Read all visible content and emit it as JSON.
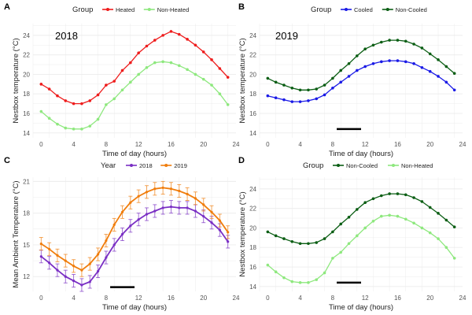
{
  "colors": {
    "heated": "#ee1c1c",
    "nonheated": "#8ee87e",
    "cooled": "#1a1ae6",
    "noncooled": "#0b5e14",
    "y2018": "#7a2fc4",
    "y2019": "#f07d0c",
    "grid": "#ececec",
    "text": "#222222",
    "tick": "#555555"
  },
  "chart_data": [
    {
      "id": "A",
      "panel_label": "A",
      "type": "line",
      "title": "",
      "annotation": "2018",
      "xlabel": "Time of day (hours)",
      "ylabel": "Nestbox temperature (°C)",
      "xlim": [
        -1,
        24
      ],
      "ylim": [
        13.5,
        25.2
      ],
      "xticks": [
        0,
        4,
        8,
        12,
        16,
        20,
        24
      ],
      "yticks": [
        14,
        16,
        18,
        20,
        22,
        24
      ],
      "legend": {
        "title": "Group",
        "position": "top"
      },
      "x": [
        0,
        1,
        2,
        3,
        4,
        5,
        6,
        7,
        8,
        9,
        10,
        11,
        12,
        13,
        14,
        15,
        16,
        17,
        18,
        19,
        20,
        21,
        22,
        23
      ],
      "series": [
        {
          "name": "Heated",
          "color_key": "heated",
          "values": [
            19.0,
            18.5,
            17.8,
            17.3,
            17.0,
            17.0,
            17.3,
            17.9,
            18.9,
            19.3,
            20.4,
            21.2,
            22.2,
            22.9,
            23.5,
            24.0,
            24.4,
            24.1,
            23.6,
            23.0,
            22.3,
            21.5,
            20.6,
            19.7
          ]
        },
        {
          "name": "Non-Heated",
          "color_key": "nonheated",
          "values": [
            16.2,
            15.5,
            14.9,
            14.5,
            14.4,
            14.4,
            14.7,
            15.4,
            16.9,
            17.5,
            18.4,
            19.2,
            20.0,
            20.7,
            21.2,
            21.3,
            21.2,
            20.9,
            20.5,
            20.0,
            19.5,
            18.9,
            18.0,
            16.9
          ]
        }
      ]
    },
    {
      "id": "B",
      "panel_label": "B",
      "type": "line",
      "title": "",
      "annotation": "2019",
      "xlabel": "Time of day (hours)",
      "ylabel": "Nestbox temperature (°C)",
      "xlim": [
        -1,
        24
      ],
      "ylim": [
        13.5,
        25.2
      ],
      "xticks": [
        0,
        4,
        8,
        12,
        16,
        20,
        24
      ],
      "yticks": [
        14,
        16,
        18,
        20,
        22,
        24
      ],
      "legend": {
        "title": "Group",
        "position": "top"
      },
      "bar": {
        "x_start": 8.5,
        "x_end": 11.5,
        "y": 14.4
      },
      "x": [
        0,
        1,
        2,
        3,
        4,
        5,
        6,
        7,
        8,
        9,
        10,
        11,
        12,
        13,
        14,
        15,
        16,
        17,
        18,
        19,
        20,
        21,
        22,
        23
      ],
      "series": [
        {
          "name": "Cooled",
          "color_key": "cooled",
          "values": [
            17.8,
            17.6,
            17.4,
            17.2,
            17.2,
            17.3,
            17.5,
            17.9,
            18.6,
            19.2,
            19.8,
            20.4,
            20.8,
            21.1,
            21.3,
            21.4,
            21.4,
            21.3,
            21.1,
            20.7,
            20.3,
            19.8,
            19.2,
            18.4
          ]
        },
        {
          "name": "Non-Cooled",
          "color_key": "noncooled",
          "values": [
            19.6,
            19.2,
            18.9,
            18.6,
            18.4,
            18.4,
            18.5,
            18.9,
            19.6,
            20.4,
            21.1,
            21.9,
            22.6,
            23.0,
            23.3,
            23.5,
            23.5,
            23.4,
            23.1,
            22.7,
            22.1,
            21.5,
            20.8,
            20.1
          ]
        }
      ]
    },
    {
      "id": "C",
      "panel_label": "C",
      "type": "line",
      "title": "",
      "annotation": "",
      "xlabel": "Time of day (hours)",
      "ylabel": "Mean Ambient Temperature (°C)",
      "xlim": [
        -1,
        24
      ],
      "ylim": [
        10.6,
        21.4
      ],
      "xticks": [
        0,
        4,
        8,
        12,
        16,
        20,
        24
      ],
      "yticks": [
        12,
        15,
        18,
        21
      ],
      "legend": {
        "title": "Year",
        "position": "top"
      },
      "bar": {
        "x_start": 8.5,
        "x_end": 11.5,
        "y": 11.0
      },
      "error": 0.6,
      "x": [
        0,
        1,
        2,
        3,
        4,
        5,
        6,
        7,
        8,
        9,
        10,
        11,
        12,
        13,
        14,
        15,
        16,
        17,
        18,
        19,
        20,
        21,
        22,
        23
      ],
      "series": [
        {
          "name": "2018",
          "color_key": "y2018",
          "values": [
            13.9,
            13.3,
            12.6,
            12.0,
            11.6,
            11.2,
            11.5,
            12.5,
            13.8,
            15.0,
            16.0,
            16.8,
            17.4,
            17.9,
            18.2,
            18.5,
            18.6,
            18.5,
            18.5,
            18.2,
            17.7,
            17.1,
            16.4,
            15.3
          ]
        },
        {
          "name": "2019",
          "color_key": "y2019",
          "values": [
            15.1,
            14.6,
            14.0,
            13.5,
            13.0,
            12.6,
            13.2,
            14.1,
            15.4,
            16.9,
            18.1,
            19.0,
            19.6,
            20.0,
            20.3,
            20.4,
            20.3,
            20.1,
            19.8,
            19.4,
            18.8,
            18.1,
            17.3,
            16.2
          ]
        }
      ]
    },
    {
      "id": "D",
      "panel_label": "D",
      "type": "line",
      "title": "",
      "annotation": "",
      "xlabel": "Time of day (hours)",
      "ylabel": "Nestbox temperature (°C)",
      "xlim": [
        -1,
        24
      ],
      "ylim": [
        13.5,
        25.2
      ],
      "xticks": [
        0,
        4,
        8,
        12,
        16,
        20,
        24
      ],
      "yticks": [
        14,
        16,
        18,
        20,
        22,
        24
      ],
      "legend": {
        "title": "Group",
        "position": "top"
      },
      "bar": {
        "x_start": 8.5,
        "x_end": 11.5,
        "y": 14.4
      },
      "x": [
        0,
        1,
        2,
        3,
        4,
        5,
        6,
        7,
        8,
        9,
        10,
        11,
        12,
        13,
        14,
        15,
        16,
        17,
        18,
        19,
        20,
        21,
        22,
        23
      ],
      "series": [
        {
          "name": "Non-Cooled",
          "color_key": "noncooled",
          "values": [
            19.6,
            19.2,
            18.9,
            18.6,
            18.4,
            18.4,
            18.5,
            18.9,
            19.6,
            20.4,
            21.1,
            21.9,
            22.6,
            23.0,
            23.3,
            23.5,
            23.5,
            23.4,
            23.1,
            22.7,
            22.1,
            21.5,
            20.8,
            20.1
          ]
        },
        {
          "name": "Non-Heated",
          "color_key": "nonheated",
          "values": [
            16.2,
            15.5,
            14.9,
            14.5,
            14.4,
            14.4,
            14.7,
            15.4,
            16.9,
            17.5,
            18.4,
            19.2,
            20.0,
            20.7,
            21.2,
            21.3,
            21.2,
            20.9,
            20.5,
            20.0,
            19.5,
            18.9,
            18.0,
            16.9
          ]
        }
      ]
    }
  ]
}
